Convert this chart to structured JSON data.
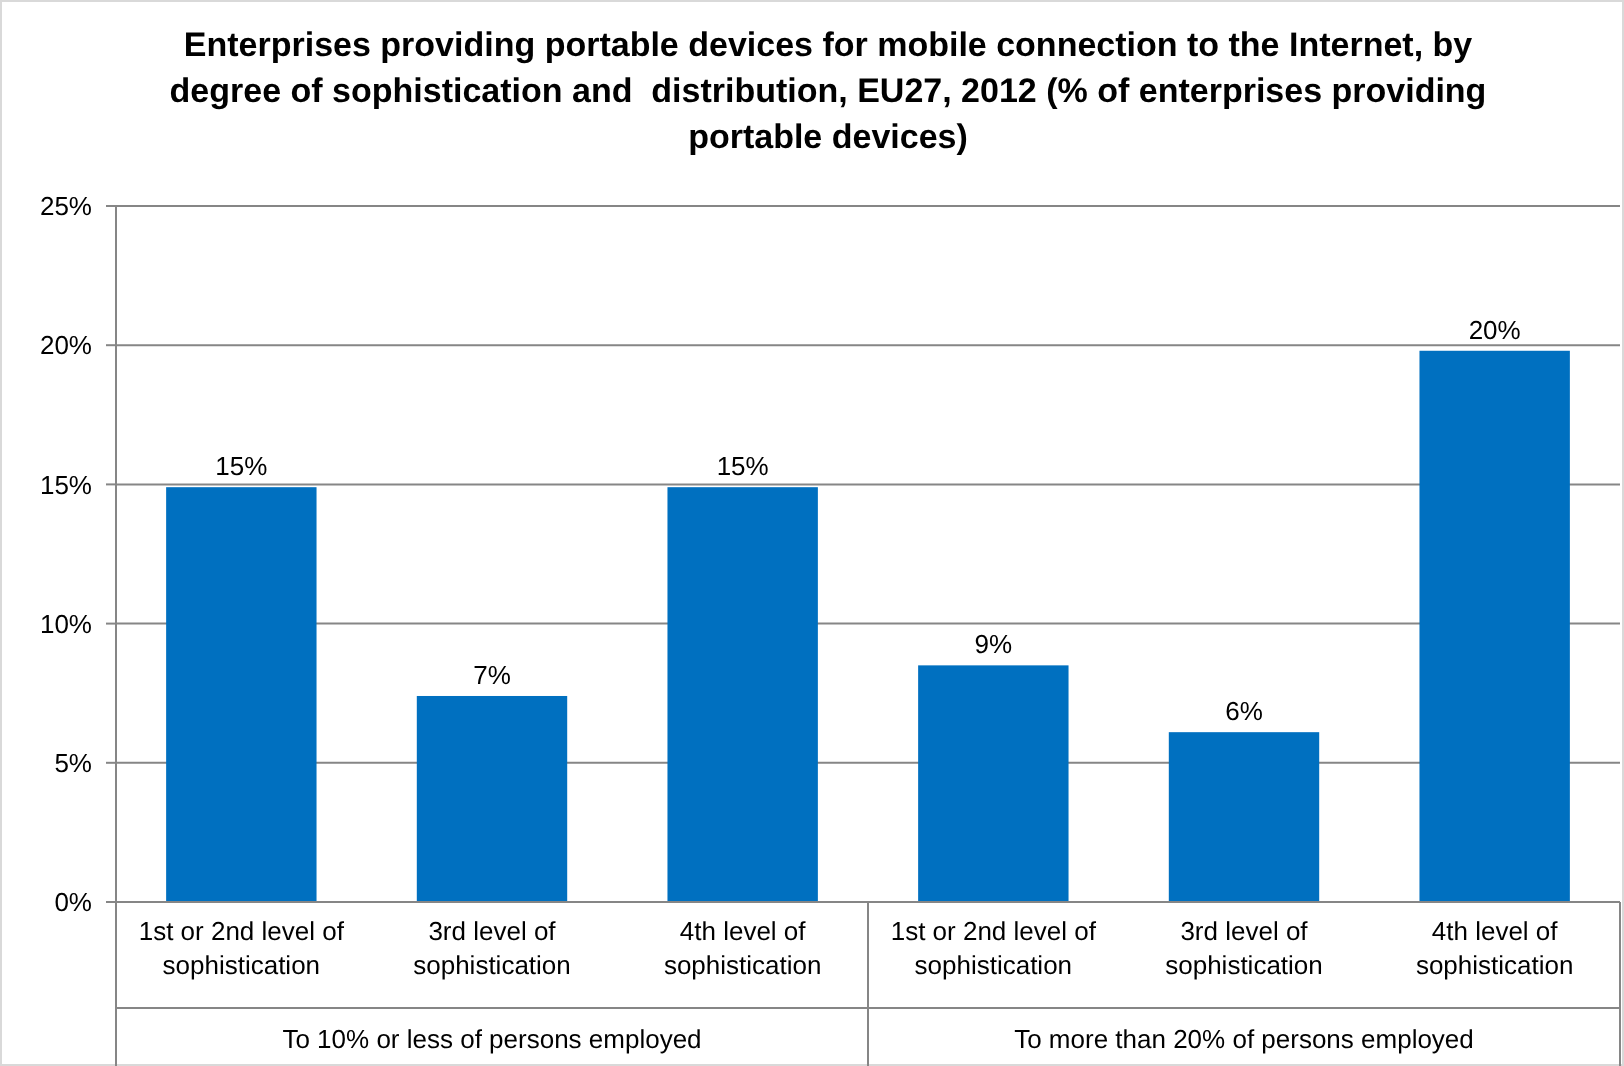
{
  "chart_data": {
    "type": "bar",
    "title": "Enterprises providing portable devices for mobile connection to the Internet, by degree of sophistication and  distribution, EU27, 2012 (% of enterprises providing portable devices)",
    "categories": [
      "1st or 2nd level of sophistication",
      "3rd level of sophistication",
      "4th level of sophistication",
      "1st or 2nd level of sophistication",
      "3rd level of sophistication",
      "4th level of sophistication"
    ],
    "values": [
      14.9,
      7.4,
      14.9,
      8.5,
      6.1,
      19.8
    ],
    "value_labels": [
      "15%",
      "7%",
      "15%",
      "9%",
      "6%",
      "20%"
    ],
    "color": "#0070c0",
    "ylim": [
      0,
      25
    ],
    "yticks": [
      {
        "value": 0,
        "label": "0%"
      },
      {
        "value": 5,
        "label": "5%"
      },
      {
        "value": 10,
        "label": "10%"
      },
      {
        "value": 15,
        "label": "15%"
      },
      {
        "value": 20,
        "label": "20%"
      },
      {
        "value": 25,
        "label": "25%"
      }
    ],
    "grid": "y",
    "annotations": [
      "To 10% or less of persons employed",
      "To more than 20% of persons employed"
    ]
  }
}
